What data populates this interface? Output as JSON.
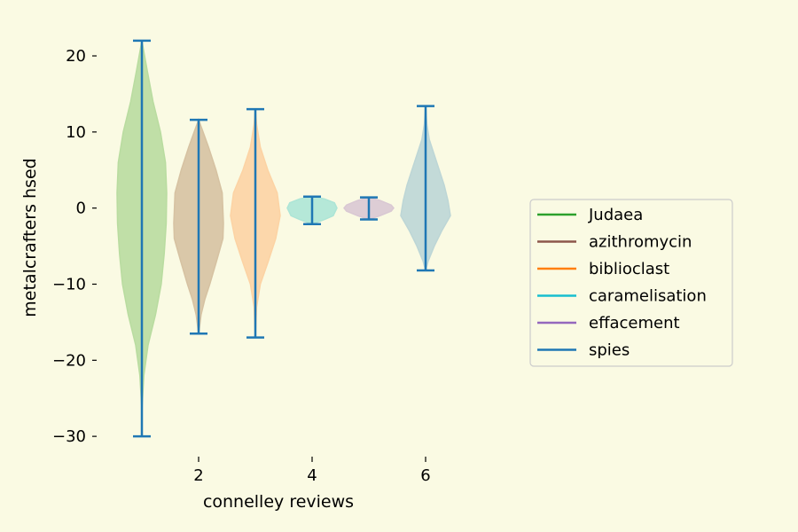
{
  "chart_data": {
    "type": "violin",
    "xlabel": "connelley reviews",
    "ylabel": "metalcrafters hsed",
    "xlim": [
      0.5,
      6.5
    ],
    "ylim": [
      -31.5,
      23.5
    ],
    "xticks": [
      2,
      4,
      6
    ],
    "yticks": [
      20,
      10,
      0,
      -10,
      -20,
      -30
    ],
    "grid": false,
    "legend_position": "right",
    "series": [
      {
        "name": "Judaea",
        "position": 1,
        "min": -30,
        "max": 22,
        "color": "#2ca02c",
        "fill": "#b9dca0",
        "profile": [
          [
            -30,
            0
          ],
          [
            -26,
            0.01
          ],
          [
            -22,
            0.08
          ],
          [
            -18,
            0.25
          ],
          [
            -14,
            0.55
          ],
          [
            -10,
            0.78
          ],
          [
            -6,
            0.9
          ],
          [
            -2,
            0.98
          ],
          [
            2,
            1.0
          ],
          [
            6,
            0.95
          ],
          [
            10,
            0.75
          ],
          [
            14,
            0.45
          ],
          [
            18,
            0.22
          ],
          [
            22,
            0
          ]
        ]
      },
      {
        "name": "azithromycin",
        "position": 2,
        "min": -16.5,
        "max": 11.6,
        "color": "#8c564b",
        "fill": "#d6c2a2",
        "profile": [
          [
            -16.5,
            0
          ],
          [
            -14,
            0.1
          ],
          [
            -12,
            0.25
          ],
          [
            -10,
            0.45
          ],
          [
            -7,
            0.72
          ],
          [
            -4,
            0.98
          ],
          [
            -2,
            1.0
          ],
          [
            2,
            0.95
          ],
          [
            5,
            0.7
          ],
          [
            8,
            0.4
          ],
          [
            10,
            0.18
          ],
          [
            11.6,
            0
          ]
        ]
      },
      {
        "name": "biblioclast",
        "position": 3,
        "min": -17,
        "max": 13,
        "color": "#ff7f0e",
        "fill": "#fcd3a4",
        "profile": [
          [
            -17,
            0
          ],
          [
            -13,
            0.05
          ],
          [
            -10,
            0.2
          ],
          [
            -7,
            0.52
          ],
          [
            -4,
            0.82
          ],
          [
            -1,
            1.0
          ],
          [
            2,
            0.88
          ],
          [
            5,
            0.5
          ],
          [
            8,
            0.2
          ],
          [
            11,
            0.05
          ],
          [
            13,
            0
          ]
        ]
      },
      {
        "name": "caramelisation",
        "position": 4,
        "min": -2.1,
        "max": 1.5,
        "color": "#17becf",
        "fill": "#ade5d6",
        "profile": [
          [
            -2.1,
            0
          ],
          [
            -1.5,
            0.5
          ],
          [
            -1,
            0.85
          ],
          [
            0,
            1.0
          ],
          [
            0.7,
            0.9
          ],
          [
            1.2,
            0.5
          ],
          [
            1.5,
            0
          ]
        ]
      },
      {
        "name": "effacement",
        "position": 5,
        "min": -1.5,
        "max": 1.4,
        "color": "#9467bd",
        "fill": "#d9c8d3",
        "profile": [
          [
            -1.5,
            0
          ],
          [
            -1,
            0.45
          ],
          [
            -0.4,
            0.9
          ],
          [
            0,
            1.0
          ],
          [
            0.4,
            0.9
          ],
          [
            1,
            0.45
          ],
          [
            1.4,
            0
          ]
        ]
      },
      {
        "name": "spies",
        "position": 6,
        "min": -8.2,
        "max": 13.4,
        "color": "#1f77b4",
        "fill": "#bdd6d6",
        "profile": [
          [
            -8.2,
            0
          ],
          [
            -7,
            0.1
          ],
          [
            -5,
            0.35
          ],
          [
            -3,
            0.65
          ],
          [
            -1,
            1.0
          ],
          [
            1,
            0.9
          ],
          [
            3,
            0.75
          ],
          [
            5,
            0.55
          ],
          [
            7,
            0.35
          ],
          [
            9,
            0.15
          ],
          [
            11,
            0.05
          ],
          [
            13.4,
            0
          ]
        ]
      }
    ]
  },
  "legend": [
    {
      "label": "Judaea",
      "color": "#2ca02c"
    },
    {
      "label": "azithromycin",
      "color": "#8c564b"
    },
    {
      "label": "biblioclast",
      "color": "#ff7f0e"
    },
    {
      "label": "caramelisation",
      "color": "#17becf"
    },
    {
      "label": "effacement",
      "color": "#9467bd"
    },
    {
      "label": "spies",
      "color": "#1f77b4"
    }
  ],
  "whisker_color": "#1f77b4"
}
